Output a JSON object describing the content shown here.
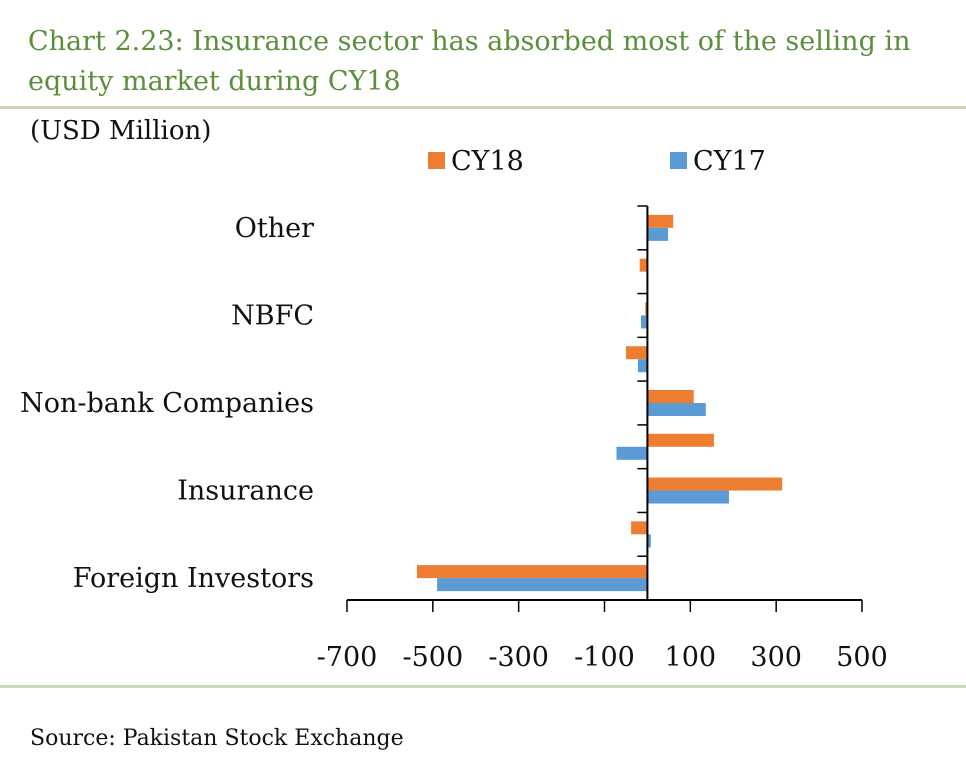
{
  "title": "Chart 2.23: Insurance sector has absorbed most of the selling in equity market during CY18",
  "unit_label": "(USD Million)",
  "source": "Source:  Pakistan Stock Exchange",
  "colors": {
    "CY18": "#ed7d31",
    "CY17": "#5b9bd5",
    "title": "#5b8f3c",
    "rule": "#c9d9b3"
  },
  "chart_data": {
    "type": "bar",
    "orientation": "horizontal",
    "categories": [
      "Foreign Investors",
      "",
      "Insurance",
      "",
      "Non-bank Companies",
      "",
      "NBFC",
      "",
      "Other"
    ],
    "series": [
      {
        "name": "CY18",
        "values": [
          -537,
          -38,
          314,
          155,
          108,
          -50,
          -5,
          -18,
          60
        ]
      },
      {
        "name": "CY17",
        "values": [
          -490,
          8,
          190,
          -72,
          136,
          -22,
          -15,
          0,
          48
        ]
      }
    ],
    "xlim": [
      -700,
      500
    ],
    "xticks": [
      "-700",
      "-500",
      "-300",
      "-100",
      "100",
      "300",
      "500"
    ],
    "legend_position": "top",
    "grid": false
  }
}
